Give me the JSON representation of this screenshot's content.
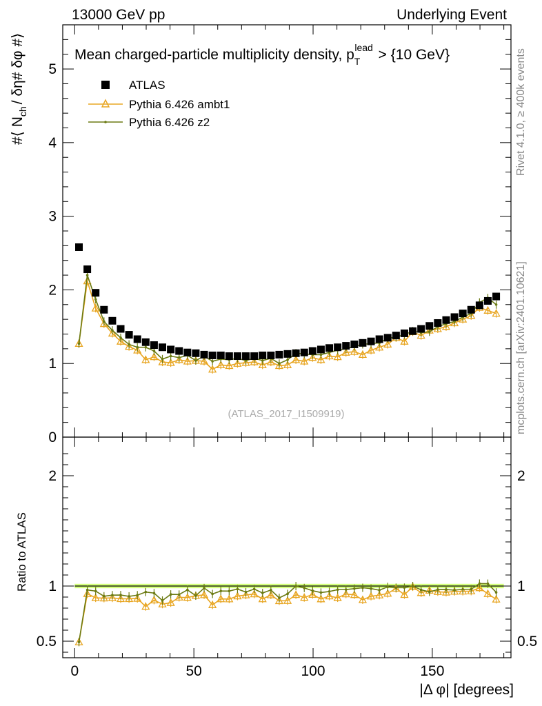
{
  "header": {
    "left": "13000 GeV pp",
    "right": "Underlying Event"
  },
  "side_text": {
    "rivet": "Rivet 4.1.0, ≥ 400k events",
    "source": "mcplots.cern.ch [arXiv:2401.10621]"
  },
  "watermark": "(ATLAS_2017_I1509919)",
  "chart_data": {
    "type": "line",
    "title_main": "Mean charged-particle multiplicity density, p",
    "title_sub": "T",
    "title_sup": "lead",
    "title_tail": " > {10 GeV}",
    "ylabel_parts": [
      "#",
      "⟨ N",
      "ch",
      "/ δη# δφ #⟩"
    ],
    "ratio_ylabel": "Ratio to ATLAS",
    "xlabel": "|Δ φ| [degrees]",
    "xlim": [
      -5,
      183
    ],
    "ylim": [
      0,
      5.6
    ],
    "ratio_ylim": [
      0.35,
      2.35
    ],
    "x_ticks": [
      0,
      50,
      100,
      150
    ],
    "y_ticks": [
      0,
      1,
      2,
      3,
      4,
      5
    ],
    "ratio_ticks": [
      0.5,
      1,
      2
    ],
    "legend": [
      "ATLAS",
      "Pythia 6.426 ambt1",
      "Pythia 6.426 z2"
    ],
    "colors": {
      "data": "#000000",
      "ambt1": "#e8a520",
      "z2": "#6b7a12",
      "band": "#ccff66"
    },
    "x": [
      1.8,
      5.3,
      8.8,
      12.3,
      15.8,
      19.3,
      22.8,
      26.3,
      29.8,
      33.3,
      36.8,
      40.3,
      43.8,
      47.3,
      50.8,
      54.3,
      57.8,
      61.3,
      64.8,
      68.3,
      71.8,
      75.3,
      78.8,
      82.3,
      85.8,
      89.3,
      92.8,
      96.3,
      99.8,
      103.3,
      106.8,
      110.3,
      113.8,
      117.3,
      120.8,
      124.3,
      127.8,
      131.3,
      134.8,
      138.3,
      141.8,
      145.3,
      148.8,
      152.3,
      155.8,
      159.3,
      162.8,
      166.3,
      169.8,
      173.3,
      176.8
    ],
    "series": [
      {
        "name": "ATLAS",
        "values": [
          2.58,
          2.28,
          1.96,
          1.73,
          1.58,
          1.47,
          1.39,
          1.33,
          1.29,
          1.25,
          1.22,
          1.19,
          1.17,
          1.15,
          1.14,
          1.12,
          1.11,
          1.11,
          1.1,
          1.1,
          1.1,
          1.1,
          1.11,
          1.11,
          1.12,
          1.13,
          1.14,
          1.15,
          1.17,
          1.19,
          1.21,
          1.22,
          1.24,
          1.26,
          1.28,
          1.3,
          1.33,
          1.35,
          1.38,
          1.41,
          1.44,
          1.47,
          1.51,
          1.55,
          1.59,
          1.63,
          1.68,
          1.73,
          1.79,
          1.85,
          1.91
        ]
      },
      {
        "name": "Pythia 6.426 ambt1",
        "values": [
          1.27,
          2.12,
          1.75,
          1.54,
          1.41,
          1.3,
          1.23,
          1.18,
          1.05,
          1.09,
          1.02,
          1.01,
          1.05,
          1.03,
          1.04,
          1.03,
          0.92,
          0.98,
          0.97,
          1.0,
          1.01,
          1.02,
          0.98,
          1.02,
          0.97,
          0.98,
          1.05,
          1.03,
          1.08,
          1.05,
          1.1,
          1.09,
          1.15,
          1.16,
          1.12,
          1.18,
          1.22,
          1.26,
          1.35,
          1.3,
          1.43,
          1.38,
          1.45,
          1.47,
          1.5,
          1.55,
          1.6,
          1.65,
          1.76,
          1.72,
          1.68
        ]
      },
      {
        "name": "Pythia 6.426 z2",
        "values": [
          1.27,
          2.2,
          1.87,
          1.57,
          1.45,
          1.35,
          1.26,
          1.22,
          1.22,
          1.17,
          1.06,
          1.1,
          1.08,
          1.11,
          1.04,
          1.1,
          1.03,
          1.06,
          1.05,
          1.07,
          1.04,
          1.07,
          1.04,
          1.07,
          1.0,
          1.05,
          1.14,
          1.13,
          1.12,
          1.12,
          1.15,
          1.18,
          1.2,
          1.23,
          1.26,
          1.27,
          1.28,
          1.34,
          1.36,
          1.39,
          1.44,
          1.42,
          1.43,
          1.5,
          1.54,
          1.57,
          1.63,
          1.68,
          1.83,
          1.89,
          1.8
        ]
      }
    ]
  }
}
